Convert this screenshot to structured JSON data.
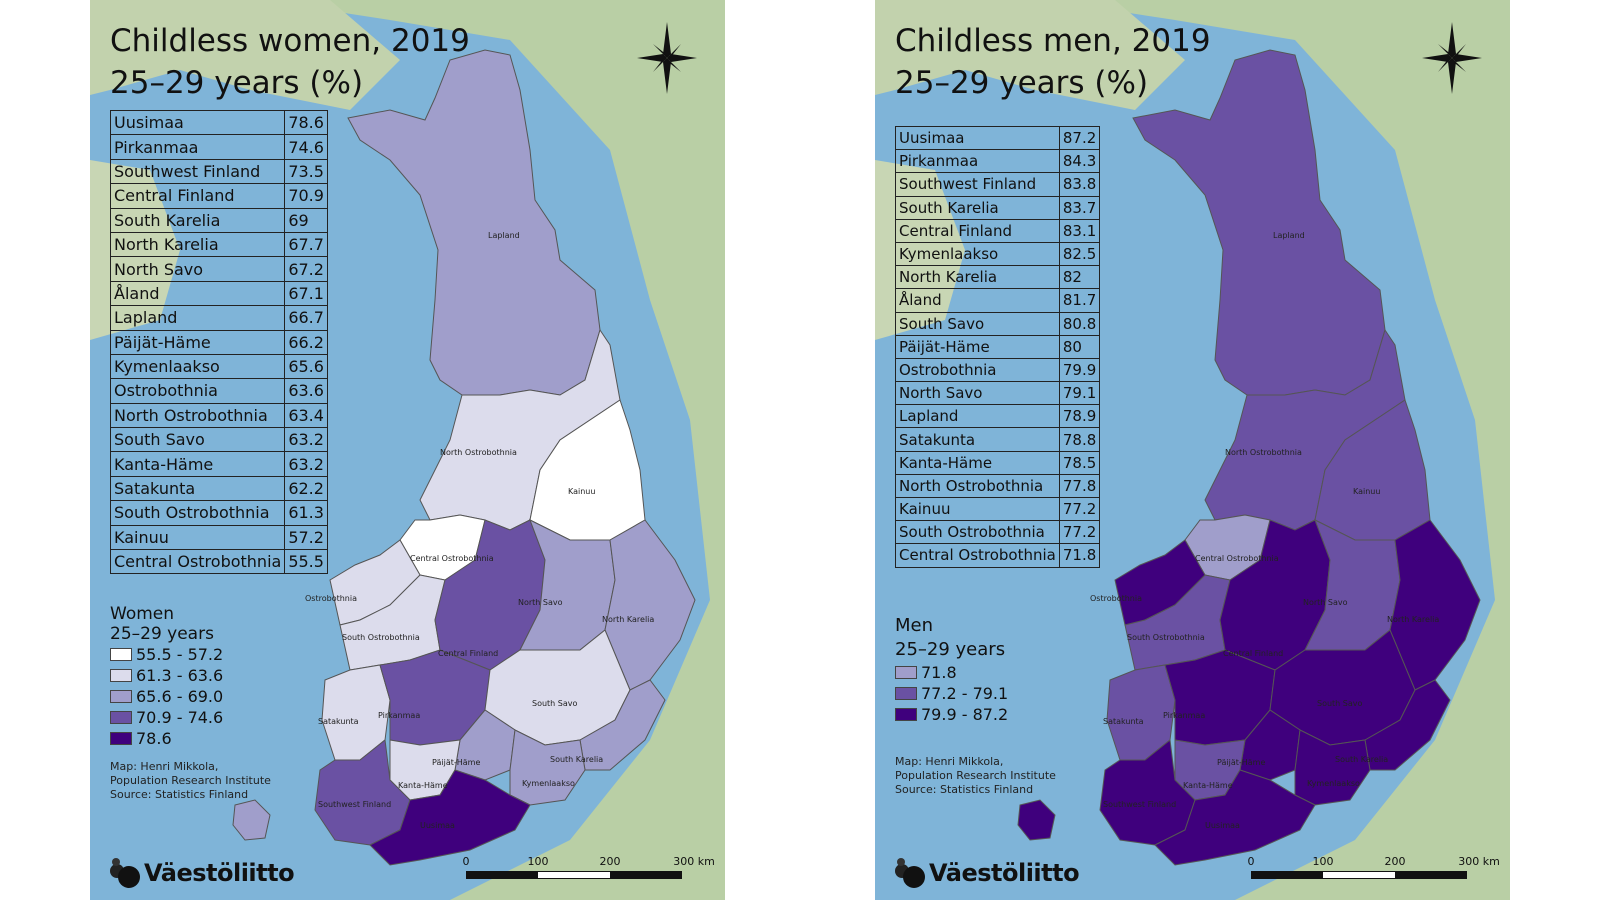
{
  "maps": [
    {
      "id": "women",
      "title_line1": "Childless women, 2019",
      "title_line2": "25–29 years (%)",
      "table": [
        {
          "region": "Uusimaa",
          "value": "78.6"
        },
        {
          "region": "Pirkanmaa",
          "value": "74.6"
        },
        {
          "region": "Southwest Finland",
          "value": "73.5"
        },
        {
          "region": "Central Finland",
          "value": "70.9"
        },
        {
          "region": "South Karelia",
          "value": "69"
        },
        {
          "region": "North Karelia",
          "value": "67.7"
        },
        {
          "region": "North Savo",
          "value": "67.2"
        },
        {
          "region": "Åland",
          "value": "67.1"
        },
        {
          "region": "Lapland",
          "value": "66.7"
        },
        {
          "region": "Päijät-Häme",
          "value": "66.2"
        },
        {
          "region": "Kymenlaakso",
          "value": "65.6"
        },
        {
          "region": "Ostrobothnia",
          "value": "63.6"
        },
        {
          "region": "North Ostrobothnia",
          "value": "63.4"
        },
        {
          "region": "South Savo",
          "value": "63.2"
        },
        {
          "region": "Kanta-Häme",
          "value": "63.2"
        },
        {
          "region": "Satakunta",
          "value": "62.2"
        },
        {
          "region": "South Ostrobothnia",
          "value": "61.3"
        },
        {
          "region": "Kainuu",
          "value": "57.2"
        },
        {
          "region": "Central Ostrobothnia",
          "value": "55.5"
        }
      ],
      "legend_title_line1": "Women",
      "legend_title_line2": "25–29 years",
      "legend": [
        {
          "label": "55.5 - 57.2",
          "color": "#ffffff"
        },
        {
          "label": "61.3 - 63.6",
          "color": "#dcdcec"
        },
        {
          "label": "65.6 - 69.0",
          "color": "#a09ecb"
        },
        {
          "label": "70.9 - 74.6",
          "color": "#6a51a3"
        },
        {
          "label": "78.6",
          "color": "#3f007d"
        }
      ],
      "region_colors": {
        "Lapland": "#a09ecb",
        "North Ostrobothnia": "#dcdcec",
        "Kainuu": "#ffffff",
        "Central Ostrobothnia": "#ffffff",
        "Ostrobothnia": "#dcdcec",
        "South Ostrobothnia": "#dcdcec",
        "Central Finland": "#6a51a3",
        "North Savo": "#a09ecb",
        "North Karelia": "#a09ecb",
        "Satakunta": "#dcdcec",
        "Pirkanmaa": "#6a51a3",
        "South Savo": "#dcdcec",
        "Päijät-Häme": "#a09ecb",
        "Kanta-Häme": "#dcdcec",
        "South Karelia": "#a09ecb",
        "Kymenlaakso": "#a09ecb",
        "Southwest Finland": "#6a51a3",
        "Uusimaa": "#3f007d",
        "Åland": "#a09ecb"
      },
      "credit": "Map: Henri Mikkola,\nPopulation Research Institute\nSource: Statistics Finland",
      "logo": "Väestöliitto",
      "scale": [
        "0",
        "100",
        "200",
        "300 km"
      ]
    },
    {
      "id": "men",
      "title_line1": "Childless men, 2019",
      "title_line2": "25–29 years (%)",
      "table": [
        {
          "region": "Uusimaa",
          "value": "87.2"
        },
        {
          "region": "Pirkanmaa",
          "value": "84.3"
        },
        {
          "region": "Southwest Finland",
          "value": "83.8"
        },
        {
          "region": "South Karelia",
          "value": "83.7"
        },
        {
          "region": "Central Finland",
          "value": "83.1"
        },
        {
          "region": "Kymenlaakso",
          "value": "82.5"
        },
        {
          "region": "North Karelia",
          "value": "82"
        },
        {
          "region": "Åland",
          "value": "81.7"
        },
        {
          "region": "South Savo",
          "value": "80.8"
        },
        {
          "region": "Päijät-Häme",
          "value": "80"
        },
        {
          "region": "Ostrobothnia",
          "value": "79.9"
        },
        {
          "region": "North Savo",
          "value": "79.1"
        },
        {
          "region": "Lapland",
          "value": "78.9"
        },
        {
          "region": "Satakunta",
          "value": "78.8"
        },
        {
          "region": "Kanta-Häme",
          "value": "78.5"
        },
        {
          "region": "North Ostrobothnia",
          "value": "77.8"
        },
        {
          "region": "Kainuu",
          "value": "77.2"
        },
        {
          "region": "South Ostrobothnia",
          "value": "77.2"
        },
        {
          "region": "Central Ostrobothnia",
          "value": "71.8"
        }
      ],
      "legend_title_line1": "Men",
      "legend_title_line2": "25–29 years",
      "legend": [
        {
          "label": "71.8",
          "color": "#a09ecb"
        },
        {
          "label": "77.2 - 79.1",
          "color": "#6a51a3"
        },
        {
          "label": "79.9 - 87.2",
          "color": "#3f007d"
        }
      ],
      "region_colors": {
        "Lapland": "#6a51a3",
        "North Ostrobothnia": "#6a51a3",
        "Kainuu": "#6a51a3",
        "Central Ostrobothnia": "#a09ecb",
        "Ostrobothnia": "#3f007d",
        "South Ostrobothnia": "#6a51a3",
        "Central Finland": "#3f007d",
        "North Savo": "#6a51a3",
        "North Karelia": "#3f007d",
        "Satakunta": "#6a51a3",
        "Pirkanmaa": "#3f007d",
        "South Savo": "#3f007d",
        "Päijät-Häme": "#3f007d",
        "Kanta-Häme": "#6a51a3",
        "South Karelia": "#3f007d",
        "Kymenlaakso": "#3f007d",
        "Southwest Finland": "#3f007d",
        "Uusimaa": "#3f007d",
        "Åland": "#3f007d"
      },
      "credit": "Map: Henri Mikkola,\nPopulation Research Institute\nSource: Statistics Finland",
      "logo": "Väestöliitto",
      "scale": [
        "0",
        "100",
        "200",
        "300 km"
      ]
    }
  ]
}
